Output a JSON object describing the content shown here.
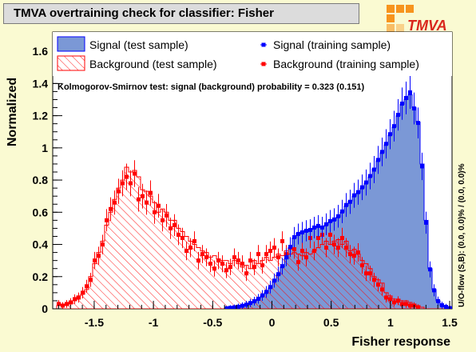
{
  "title": "TMVA overtraining check for classifier: Fisher",
  "logo_text": "TMVA",
  "ks_text": "Kolmogorov-Smirnov test: signal (background) probability = 0.323 (0.151)",
  "overflow_text": "U/O-flow (S,B): (0.0, 0.0)% / (0.0, 0.0)%",
  "colors": {
    "signal_fill": "#7b98d6",
    "signal_line": "#0000ff",
    "background": "#ff0000",
    "frame_bg": "#ffffff",
    "page_bg": "#fafad2"
  },
  "chart_data": {
    "type": "histogram",
    "xlabel": "Fisher response",
    "ylabel": "Normalized",
    "xlim": [
      -1.85,
      1.52
    ],
    "ylim": [
      0,
      1.72
    ],
    "xticks": [
      -1.5,
      -1,
      -0.5,
      0,
      0.5,
      1,
      1.5
    ],
    "xtick_labels": [
      "-1.5",
      "-1",
      "-0.5",
      "0",
      "0.5",
      "1",
      "1.5"
    ],
    "yticks": [
      0,
      0.2,
      0.4,
      0.6,
      0.8,
      1,
      1.2,
      1.4,
      1.6
    ],
    "ytick_labels": [
      "0",
      "0.2",
      "0.4",
      "0.6",
      "0.8",
      "1",
      "1.2",
      "1.4",
      "1.6"
    ],
    "legend": [
      {
        "name": "Signal (test sample)",
        "style": "filled-blue"
      },
      {
        "name": "Background (test sample)",
        "style": "hatched-red"
      },
      {
        "name": "Signal (training sample)",
        "style": "blue-points"
      },
      {
        "name": "Background (training sample)",
        "style": "red-points"
      }
    ],
    "bin_edges_range": [
      -1.85,
      1.52
    ],
    "n_bins": 100,
    "series": [
      {
        "name": "Signal (test sample)",
        "values": [
          0,
          0,
          0,
          0,
          0,
          0,
          0,
          0,
          0,
          0,
          0,
          0,
          0,
          0,
          0,
          0,
          0,
          0,
          0,
          0,
          0,
          0,
          0,
          0,
          0,
          0,
          0,
          0,
          0,
          0,
          0,
          0,
          0,
          0,
          0,
          0,
          0,
          0,
          0,
          0,
          0,
          0,
          0,
          0.002,
          0.005,
          0.008,
          0.012,
          0.018,
          0.025,
          0.035,
          0.045,
          0.06,
          0.08,
          0.1,
          0.13,
          0.17,
          0.21,
          0.26,
          0.31,
          0.38,
          0.44,
          0.47,
          0.48,
          0.49,
          0.49,
          0.5,
          0.51,
          0.51,
          0.52,
          0.54,
          0.55,
          0.57,
          0.6,
          0.64,
          0.67,
          0.7,
          0.72,
          0.75,
          0.78,
          0.82,
          0.87,
          0.92,
          0.97,
          1.02,
          1.08,
          1.13,
          1.2,
          1.27,
          1.3,
          1.33,
          1.25,
          1.16,
          0.9,
          0.55,
          0.25,
          0.12,
          0.05,
          0.02,
          0.01,
          0
        ]
      },
      {
        "name": "Background (test sample)",
        "values": [
          0,
          0.02,
          0.03,
          0.02,
          0.03,
          0.05,
          0.08,
          0.09,
          0.12,
          0.2,
          0.28,
          0.35,
          0.42,
          0.52,
          0.6,
          0.68,
          0.75,
          0.8,
          0.88,
          0.85,
          0.86,
          0.82,
          0.74,
          0.73,
          0.7,
          0.66,
          0.6,
          0.62,
          0.6,
          0.55,
          0.55,
          0.5,
          0.48,
          0.45,
          0.42,
          0.4,
          0.38,
          0.36,
          0.35,
          0.32,
          0.33,
          0.31,
          0.3,
          0.3,
          0.28,
          0.3,
          0.28,
          0.26,
          0.27,
          0.25,
          0.3,
          0.28,
          0.3,
          0.32,
          0.3,
          0.32,
          0.34,
          0.33,
          0.36,
          0.34,
          0.35,
          0.34,
          0.33,
          0.35,
          0.34,
          0.36,
          0.38,
          0.4,
          0.42,
          0.4,
          0.42,
          0.43,
          0.4,
          0.42,
          0.36,
          0.37,
          0.34,
          0.3,
          0.28,
          0.25,
          0.2,
          0.18,
          0.16,
          0.1,
          0.08,
          0.06,
          0.06,
          0.05,
          0.05,
          0.04,
          0.03,
          0.02,
          0.01,
          0,
          0,
          0,
          0,
          0,
          0,
          0
        ]
      },
      {
        "name": "Signal (training sample)",
        "values": [
          0,
          0,
          0,
          0,
          0,
          0,
          0,
          0,
          0,
          0,
          0,
          0,
          0,
          0,
          0,
          0,
          0,
          0,
          0,
          0,
          0,
          0,
          0,
          0,
          0,
          0,
          0,
          0,
          0,
          0,
          0,
          0,
          0,
          0,
          0,
          0,
          0,
          0,
          0,
          0,
          0,
          0,
          0,
          0.003,
          0.006,
          0.009,
          0.013,
          0.019,
          0.026,
          0.036,
          0.047,
          0.062,
          0.083,
          0.105,
          0.135,
          0.175,
          0.215,
          0.265,
          0.32,
          0.385,
          0.445,
          0.465,
          0.475,
          0.485,
          0.49,
          0.505,
          0.515,
          0.505,
          0.525,
          0.545,
          0.555,
          0.575,
          0.605,
          0.645,
          0.665,
          0.705,
          0.725,
          0.755,
          0.785,
          0.825,
          0.865,
          0.925,
          0.975,
          1.025,
          1.085,
          1.135,
          1.205,
          1.275,
          1.31,
          1.345,
          1.245,
          1.155,
          0.885,
          0.535,
          0.245,
          0.115,
          0.048,
          0.022,
          0.012,
          0.004
        ]
      },
      {
        "name": "Background (training sample)",
        "values": [
          0,
          0.03,
          0.02,
          0.03,
          0.04,
          0.06,
          0.07,
          0.1,
          0.14,
          0.18,
          0.3,
          0.33,
          0.4,
          0.55,
          0.62,
          0.66,
          0.73,
          0.78,
          0.82,
          0.78,
          0.84,
          0.68,
          0.7,
          0.66,
          0.72,
          0.6,
          0.64,
          0.55,
          0.58,
          0.5,
          0.52,
          0.46,
          0.44,
          0.36,
          0.38,
          0.42,
          0.3,
          0.34,
          0.32,
          0.28,
          0.25,
          0.3,
          0.28,
          0.24,
          0.26,
          0.32,
          0.3,
          0.28,
          0.22,
          0.3,
          0.26,
          0.34,
          0.27,
          0.34,
          0.36,
          0.38,
          0.32,
          0.42,
          0.34,
          0.38,
          0.37,
          0.29,
          0.36,
          0.32,
          0.44,
          0.36,
          0.44,
          0.46,
          0.38,
          0.46,
          0.4,
          0.38,
          0.44,
          0.38,
          0.34,
          0.33,
          0.35,
          0.27,
          0.22,
          0.22,
          0.18,
          0.15,
          0.12,
          0.07,
          0.06,
          0.04,
          0.05,
          0.03,
          0.03,
          0.02,
          0.02,
          0.01,
          0,
          0,
          0,
          0,
          0,
          0,
          0,
          0
        ]
      }
    ]
  }
}
